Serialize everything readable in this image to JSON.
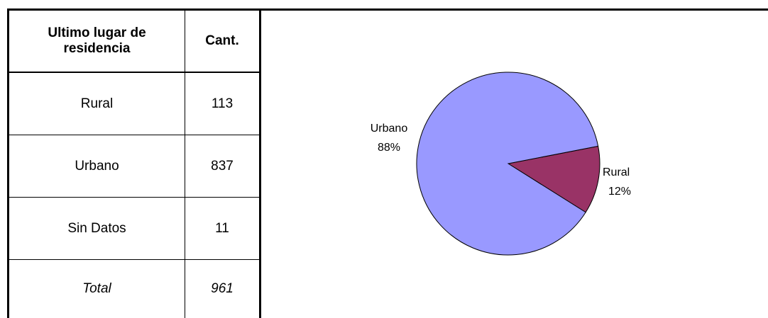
{
  "table": {
    "header": [
      "Ultimo lugar de residencia",
      "Cant."
    ],
    "rows": [
      [
        "Rural",
        "113"
      ],
      [
        "Urbano",
        "837"
      ],
      [
        "Sin Datos",
        "11"
      ]
    ],
    "total": [
      "Total",
      "961"
    ]
  },
  "chart_data": {
    "type": "pie",
    "categories": [
      "Rural",
      "Urbano"
    ],
    "values": [
      12,
      88
    ],
    "value_labels": [
      "12%",
      "88%"
    ],
    "colors": [
      "#993366",
      "#9999ff"
    ]
  }
}
